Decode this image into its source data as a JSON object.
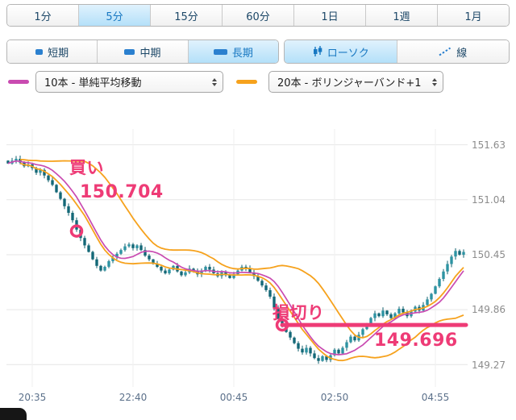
{
  "toolbar": {
    "timeframes": [
      {
        "label": "1分",
        "selected": false
      },
      {
        "label": "5分",
        "selected": true
      },
      {
        "label": "15分",
        "selected": false
      },
      {
        "label": "60分",
        "selected": false
      },
      {
        "label": "1日",
        "selected": false
      },
      {
        "label": "1週",
        "selected": false
      },
      {
        "label": "1月",
        "selected": false
      }
    ],
    "ranges": [
      {
        "label": "短期",
        "selected": false
      },
      {
        "label": "中期",
        "selected": false
      },
      {
        "label": "長期",
        "selected": true
      }
    ],
    "chart_types": [
      {
        "label": "ローソク",
        "selected": true
      },
      {
        "label": "線",
        "selected": false
      }
    ]
  },
  "indicators": {
    "ma": {
      "color": "#c94bb1",
      "value": "10本 - 単純平均移動"
    },
    "bollinger": {
      "color": "#f6a21d",
      "value": "20本 - ボリンジャーバンド+1"
    }
  },
  "chart_data": {
    "type": "candlestick",
    "interval": "5分",
    "x_labels": [
      "20:35",
      "22:40",
      "00:45",
      "02:50",
      "04:55"
    ],
    "x_tick_indices": [
      6,
      31,
      56,
      81,
      106
    ],
    "y_labels": [
      "151.63",
      "151.04",
      "150.45",
      "149.86",
      "149.27"
    ],
    "ylim": [
      149.03,
      151.8
    ],
    "closes": [
      151.43,
      151.46,
      151.48,
      151.44,
      151.4,
      151.42,
      151.38,
      151.33,
      151.36,
      151.3,
      151.25,
      151.2,
      151.12,
      151.05,
      150.97,
      150.9,
      150.82,
      150.72,
      150.63,
      150.55,
      150.48,
      150.4,
      150.33,
      150.28,
      150.32,
      150.38,
      150.42,
      150.46,
      150.5,
      150.54,
      150.56,
      150.52,
      150.55,
      150.5,
      150.44,
      150.4,
      150.35,
      150.32,
      150.28,
      150.25,
      150.29,
      150.33,
      150.27,
      150.23,
      150.26,
      150.3,
      150.27,
      150.24,
      150.28,
      150.32,
      150.29,
      150.25,
      150.22,
      150.26,
      150.23,
      150.2,
      150.24,
      150.28,
      150.32,
      150.3,
      150.26,
      150.22,
      150.17,
      150.12,
      150.07,
      150.0,
      149.88,
      149.76,
      149.68,
      149.62,
      149.56,
      149.5,
      149.44,
      149.4,
      149.45,
      149.39,
      149.34,
      149.31,
      149.36,
      149.32,
      149.37,
      149.43,
      149.39,
      149.45,
      149.51,
      149.57,
      149.53,
      149.59,
      149.65,
      149.71,
      149.77,
      149.82,
      149.79,
      149.85,
      149.81,
      149.77,
      149.82,
      149.87,
      149.83,
      149.79,
      149.84,
      149.89,
      149.85,
      149.91,
      149.97,
      150.03,
      150.11,
      150.19,
      150.27,
      150.35,
      150.43,
      150.49,
      150.45,
      150.48
    ],
    "overlays": [
      {
        "type": "sma",
        "name": "単純平均移動",
        "period": 10,
        "color": "#c94bb1"
      },
      {
        "type": "bollinger",
        "name": "ボリンジャーバンド+1",
        "period": 20,
        "sigma": 1,
        "color": "#f6a21d"
      }
    ],
    "colors": {
      "candle_up": "#2d93a3",
      "candle_down": "#136877",
      "wick": "#12606e"
    },
    "annotations": {
      "buy": {
        "label": "買い",
        "price_label": "150.704",
        "price": 150.704,
        "candle_index": 17,
        "color": "#ee3b76"
      },
      "stop": {
        "label": "損切り",
        "price_label": "149.696",
        "price": 149.696,
        "candle_index": 68,
        "color": "#ee3b76"
      }
    }
  }
}
